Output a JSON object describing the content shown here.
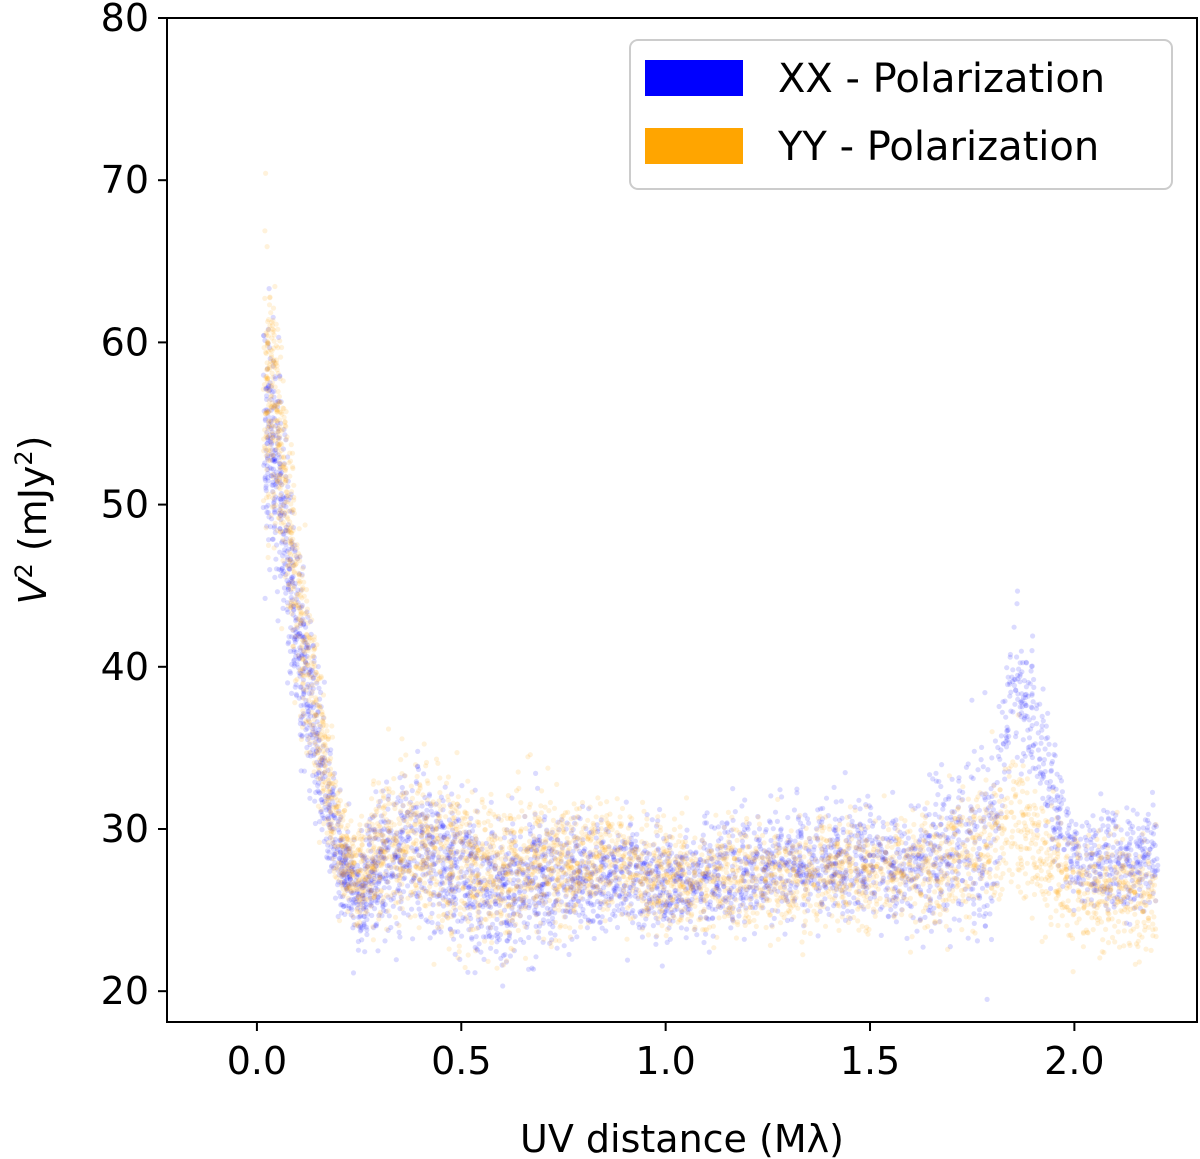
{
  "chart_data": {
    "type": "scatter",
    "title": "",
    "xlabel": "UV distance (Mλ)",
    "ylabel_main": "V",
    "ylabel_sup": "2",
    "ylabel_unit_open": " (mJy",
    "ylabel_unit_sup": "2",
    "ylabel_unit_close": ")",
    "xlim": [
      -0.22,
      2.3
    ],
    "ylim": [
      18.1,
      80
    ],
    "xticks": [
      0.0,
      0.5,
      1.0,
      1.5,
      2.0
    ],
    "xtick_labels": [
      "0.0",
      "0.5",
      "1.0",
      "1.5",
      "2.0"
    ],
    "yticks": [
      20,
      30,
      40,
      50,
      60,
      70,
      80
    ],
    "ytick_labels": [
      "20",
      "30",
      "40",
      "50",
      "60",
      "70",
      "80"
    ],
    "legend_position": "upper-right",
    "series": [
      {
        "name": "XX - Polarization",
        "color": "#0000ff",
        "profile": [
          {
            "x": 0.02,
            "y": 55,
            "spread": 7
          },
          {
            "x": 0.05,
            "y": 52,
            "spread": 6
          },
          {
            "x": 0.1,
            "y": 42,
            "spread": 5
          },
          {
            "x": 0.15,
            "y": 35,
            "spread": 4
          },
          {
            "x": 0.2,
            "y": 28,
            "spread": 3
          },
          {
            "x": 0.25,
            "y": 26,
            "spread": 3
          },
          {
            "x": 0.3,
            "y": 28,
            "spread": 4
          },
          {
            "x": 0.4,
            "y": 29,
            "spread": 4
          },
          {
            "x": 0.5,
            "y": 27,
            "spread": 4
          },
          {
            "x": 0.6,
            "y": 26,
            "spread": 4
          },
          {
            "x": 0.7,
            "y": 27,
            "spread": 4
          },
          {
            "x": 0.8,
            "y": 27,
            "spread": 3
          },
          {
            "x": 0.9,
            "y": 27,
            "spread": 3
          },
          {
            "x": 1.0,
            "y": 26.5,
            "spread": 3
          },
          {
            "x": 1.1,
            "y": 27,
            "spread": 3
          },
          {
            "x": 1.3,
            "y": 28,
            "spread": 3
          },
          {
            "x": 1.45,
            "y": 28,
            "spread": 3
          },
          {
            "x": 1.6,
            "y": 27.5,
            "spread": 3
          },
          {
            "x": 1.8,
            "y": 30,
            "spread": 6
          },
          {
            "x": 1.85,
            "y": 40,
            "spread": 4
          },
          {
            "x": 2.0,
            "y": 28,
            "spread": 3
          },
          {
            "x": 2.2,
            "y": 28,
            "spread": 3
          }
        ]
      },
      {
        "name": "YY - Polarization",
        "color": "#ffa500",
        "profile": [
          {
            "x": 0.02,
            "y": 57,
            "spread": 7
          },
          {
            "x": 0.05,
            "y": 55,
            "spread": 6
          },
          {
            "x": 0.1,
            "y": 44,
            "spread": 5
          },
          {
            "x": 0.15,
            "y": 36,
            "spread": 4
          },
          {
            "x": 0.2,
            "y": 29,
            "spread": 3
          },
          {
            "x": 0.25,
            "y": 27,
            "spread": 3
          },
          {
            "x": 0.3,
            "y": 29,
            "spread": 4
          },
          {
            "x": 0.4,
            "y": 29,
            "spread": 4
          },
          {
            "x": 0.5,
            "y": 28,
            "spread": 4
          },
          {
            "x": 0.6,
            "y": 27,
            "spread": 4
          },
          {
            "x": 0.7,
            "y": 28,
            "spread": 4
          },
          {
            "x": 0.8,
            "y": 28,
            "spread": 3
          },
          {
            "x": 0.9,
            "y": 28,
            "spread": 3
          },
          {
            "x": 1.0,
            "y": 27,
            "spread": 3
          },
          {
            "x": 1.1,
            "y": 27,
            "spread": 3
          },
          {
            "x": 1.3,
            "y": 27,
            "spread": 3
          },
          {
            "x": 1.45,
            "y": 27.5,
            "spread": 3
          },
          {
            "x": 1.6,
            "y": 27,
            "spread": 3
          },
          {
            "x": 1.8,
            "y": 29,
            "spread": 4
          },
          {
            "x": 1.85,
            "y": 31,
            "spread": 4
          },
          {
            "x": 2.0,
            "y": 26,
            "spread": 3
          },
          {
            "x": 2.2,
            "y": 26,
            "spread": 3
          }
        ]
      }
    ]
  }
}
